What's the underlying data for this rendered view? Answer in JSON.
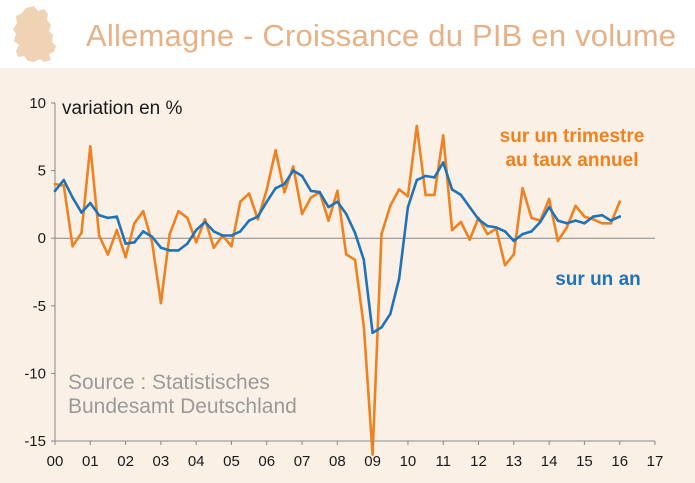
{
  "header": {
    "title": "Allemagne - Croissance du PIB en volume"
  },
  "colors": {
    "title": "#e8b185",
    "background": "#fbf0e6",
    "map": "#f0d2b4",
    "quarterly": "#ee8120",
    "annual": "#1f73b7"
  },
  "chart_data": {
    "type": "line",
    "title": "Allemagne - Croissance du PIB en volume",
    "ylabel": "variation en %",
    "xlabel": "",
    "ylim": [
      -15,
      10
    ],
    "xlim": [
      0,
      17
    ],
    "yticks": [
      "10",
      "5",
      "0",
      "-5",
      "-10",
      "-15"
    ],
    "xticks": [
      "00",
      "01",
      "02",
      "03",
      "04",
      "05",
      "06",
      "07",
      "08",
      "09",
      "10",
      "11",
      "12",
      "13",
      "14",
      "15",
      "16",
      "17"
    ],
    "source": [
      "Source : Statistisches",
      "Bundesamt Deutschland"
    ],
    "series": [
      {
        "name": "sur un trimestre au taux annuel",
        "label_lines": [
          "sur un trimestre",
          "au taux annuel"
        ],
        "color": "#ee8120",
        "x": [
          0,
          0.25,
          0.5,
          0.75,
          1,
          1.25,
          1.5,
          1.75,
          2,
          2.25,
          2.5,
          2.75,
          3,
          3.25,
          3.5,
          3.75,
          4,
          4.25,
          4.5,
          4.75,
          5,
          5.25,
          5.5,
          5.75,
          6,
          6.25,
          6.5,
          6.75,
          7,
          7.25,
          7.5,
          7.75,
          8,
          8.25,
          8.5,
          8.75,
          9,
          9.25,
          9.5,
          9.75,
          10,
          10.25,
          10.5,
          10.75,
          11,
          11.25,
          11.5,
          11.75,
          12,
          12.25,
          12.5,
          12.75,
          13,
          13.25,
          13.5,
          13.75,
          14,
          14.25,
          14.5,
          14.75,
          15,
          15.25,
          15.5,
          15.75,
          16
        ],
        "values": [
          4.0,
          3.9,
          -0.6,
          0.4,
          6.8,
          0.2,
          -1.2,
          0.6,
          -1.4,
          1.1,
          2.0,
          -0.3,
          -4.8,
          0.3,
          2.0,
          1.5,
          -0.3,
          1.4,
          -0.7,
          0.2,
          -0.6,
          2.7,
          3.3,
          1.4,
          3.6,
          6.5,
          3.4,
          5.3,
          1.8,
          3.0,
          3.4,
          1.3,
          3.5,
          -1.2,
          -1.6,
          -6.5,
          -16.0,
          0.3,
          2.4,
          3.6,
          3.1,
          8.3,
          3.2,
          3.2,
          7.6,
          0.6,
          1.2,
          -0.1,
          1.5,
          0.3,
          0.7,
          -2.0,
          -1.2,
          3.7,
          1.5,
          1.3,
          2.9,
          -0.2,
          0.8,
          2.4,
          1.6,
          1.4,
          1.1,
          1.1,
          2.7
        ]
      },
      {
        "name": "sur un an",
        "label_lines": [
          "sur un an"
        ],
        "color": "#1f73b7",
        "x": [
          0,
          0.25,
          0.5,
          0.75,
          1,
          1.25,
          1.5,
          1.75,
          2,
          2.25,
          2.5,
          2.75,
          3,
          3.25,
          3.5,
          3.75,
          4,
          4.25,
          4.5,
          4.75,
          5,
          5.25,
          5.5,
          5.75,
          6,
          6.25,
          6.5,
          6.75,
          7,
          7.25,
          7.5,
          7.75,
          8,
          8.25,
          8.5,
          8.75,
          9,
          9.25,
          9.5,
          9.75,
          10,
          10.25,
          10.5,
          10.75,
          11,
          11.25,
          11.5,
          11.75,
          12,
          12.25,
          12.5,
          12.75,
          13,
          13.25,
          13.5,
          13.75,
          14,
          14.25,
          14.5,
          14.75,
          15,
          15.25,
          15.5,
          15.75,
          16
        ],
        "values": [
          3.5,
          4.3,
          3.0,
          1.9,
          2.6,
          1.7,
          1.5,
          1.6,
          -0.4,
          -0.3,
          0.5,
          0.1,
          -0.7,
          -0.9,
          -0.9,
          -0.4,
          0.6,
          1.2,
          0.5,
          0.2,
          0.2,
          0.5,
          1.3,
          1.6,
          2.7,
          3.7,
          4.0,
          5.0,
          4.6,
          3.5,
          3.4,
          2.3,
          2.7,
          1.8,
          0.4,
          -1.6,
          -7.0,
          -6.6,
          -5.6,
          -3.0,
          2.3,
          4.3,
          4.6,
          4.5,
          5.6,
          3.6,
          3.2,
          2.3,
          1.4,
          0.9,
          0.8,
          0.5,
          -0.2,
          0.3,
          0.5,
          1.2,
          2.3,
          1.3,
          1.1,
          1.3,
          1.1,
          1.6,
          1.7,
          1.3,
          1.6
        ]
      }
    ]
  }
}
